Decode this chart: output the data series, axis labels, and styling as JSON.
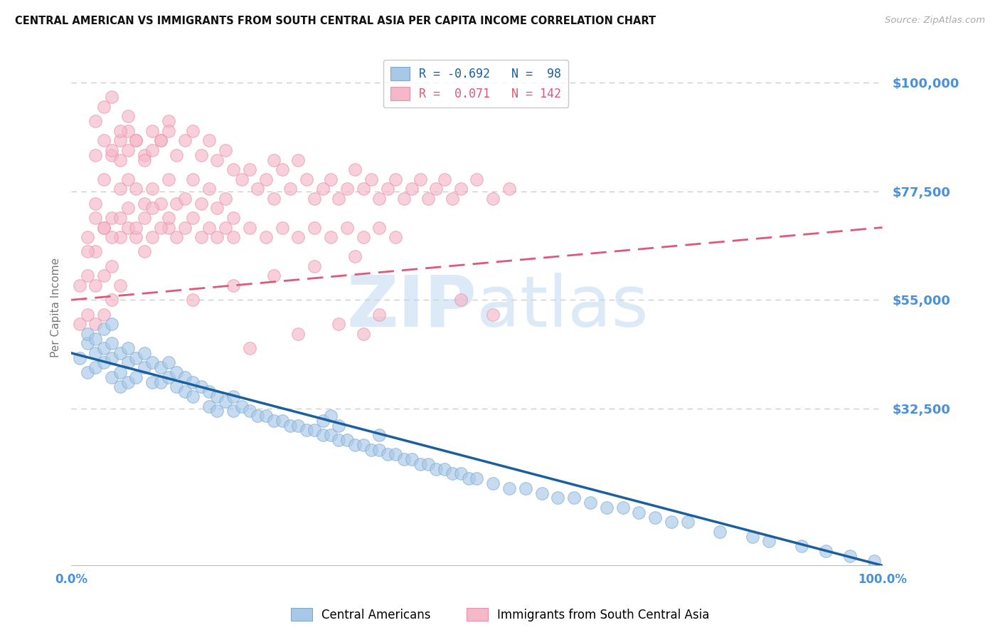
{
  "title": "CENTRAL AMERICAN VS IMMIGRANTS FROM SOUTH CENTRAL ASIA PER CAPITA INCOME CORRELATION CHART",
  "source": "Source: ZipAtlas.com",
  "ylabel": "Per Capita Income",
  "yticks": [
    32500,
    55000,
    77500,
    100000
  ],
  "ymin": 0,
  "ymax": 107000,
  "xmin": 0.0,
  "xmax": 1.0,
  "blue_R": -0.692,
  "blue_N": 98,
  "pink_R": 0.071,
  "pink_N": 142,
  "blue_color": "#a8c8e8",
  "pink_color": "#f5b8c8",
  "blue_edge_color": "#7aaace",
  "pink_edge_color": "#e890a8",
  "blue_line_color": "#1a5fa0",
  "pink_line_color": "#e05878",
  "series1_label": "Central Americans",
  "series2_label": "Immigrants from South Central Asia",
  "background_color": "#ffffff",
  "grid_color": "#c8c8c8",
  "title_color": "#111111",
  "axis_label_color": "#4a90d9",
  "watermark_color": "#c0d8f0",
  "blue_trend_x0": 0.0,
  "blue_trend_y0": 44000,
  "blue_trend_x1": 1.0,
  "blue_trend_y1": 0,
  "pink_trend_x0": 0.0,
  "pink_trend_y0": 55000,
  "pink_trend_x1": 1.0,
  "pink_trend_y1": 70000,
  "blue_x": [
    0.01,
    0.02,
    0.02,
    0.03,
    0.03,
    0.04,
    0.04,
    0.05,
    0.05,
    0.05,
    0.06,
    0.06,
    0.06,
    0.07,
    0.07,
    0.07,
    0.08,
    0.08,
    0.09,
    0.09,
    0.1,
    0.1,
    0.11,
    0.11,
    0.12,
    0.12,
    0.13,
    0.13,
    0.14,
    0.14,
    0.15,
    0.15,
    0.16,
    0.17,
    0.17,
    0.18,
    0.18,
    0.19,
    0.2,
    0.2,
    0.21,
    0.22,
    0.23,
    0.24,
    0.25,
    0.26,
    0.27,
    0.28,
    0.29,
    0.3,
    0.31,
    0.31,
    0.32,
    0.32,
    0.33,
    0.33,
    0.34,
    0.35,
    0.36,
    0.37,
    0.38,
    0.38,
    0.39,
    0.4,
    0.41,
    0.42,
    0.43,
    0.44,
    0.45,
    0.46,
    0.47,
    0.48,
    0.49,
    0.5,
    0.52,
    0.54,
    0.56,
    0.58,
    0.6,
    0.62,
    0.64,
    0.66,
    0.68,
    0.7,
    0.72,
    0.74,
    0.76,
    0.8,
    0.84,
    0.86,
    0.9,
    0.93,
    0.96,
    0.99,
    0.02,
    0.03,
    0.04,
    0.05
  ],
  "blue_y": [
    43000,
    46000,
    40000,
    44000,
    41000,
    45000,
    42000,
    46000,
    43000,
    39000,
    44000,
    40000,
    37000,
    45000,
    42000,
    38000,
    43000,
    39000,
    44000,
    41000,
    42000,
    38000,
    41000,
    38000,
    42000,
    39000,
    40000,
    37000,
    39000,
    36000,
    38000,
    35000,
    37000,
    36000,
    33000,
    35000,
    32000,
    34000,
    35000,
    32000,
    33000,
    32000,
    31000,
    31000,
    30000,
    30000,
    29000,
    29000,
    28000,
    28000,
    27000,
    30000,
    27000,
    31000,
    26000,
    29000,
    26000,
    25000,
    25000,
    24000,
    24000,
    27000,
    23000,
    23000,
    22000,
    22000,
    21000,
    21000,
    20000,
    20000,
    19000,
    19000,
    18000,
    18000,
    17000,
    16000,
    16000,
    15000,
    14000,
    14000,
    13000,
    12000,
    12000,
    11000,
    10000,
    9000,
    9000,
    7000,
    6000,
    5000,
    4000,
    3000,
    2000,
    1000,
    48000,
    47000,
    49000,
    50000
  ],
  "pink_x": [
    0.01,
    0.01,
    0.02,
    0.02,
    0.02,
    0.03,
    0.03,
    0.03,
    0.03,
    0.04,
    0.04,
    0.04,
    0.04,
    0.05,
    0.05,
    0.05,
    0.05,
    0.06,
    0.06,
    0.06,
    0.06,
    0.07,
    0.07,
    0.07,
    0.08,
    0.08,
    0.08,
    0.09,
    0.09,
    0.09,
    0.1,
    0.1,
    0.1,
    0.11,
    0.11,
    0.12,
    0.12,
    0.12,
    0.13,
    0.13,
    0.14,
    0.14,
    0.15,
    0.15,
    0.16,
    0.16,
    0.17,
    0.17,
    0.18,
    0.18,
    0.19,
    0.19,
    0.2,
    0.2,
    0.21,
    0.22,
    0.23,
    0.24,
    0.25,
    0.25,
    0.26,
    0.27,
    0.28,
    0.29,
    0.3,
    0.31,
    0.32,
    0.33,
    0.34,
    0.35,
    0.36,
    0.37,
    0.38,
    0.39,
    0.4,
    0.41,
    0.42,
    0.43,
    0.44,
    0.45,
    0.46,
    0.47,
    0.48,
    0.5,
    0.52,
    0.54,
    0.02,
    0.03,
    0.04,
    0.05,
    0.06,
    0.07,
    0.08,
    0.09,
    0.1,
    0.11,
    0.12,
    0.13,
    0.14,
    0.15,
    0.16,
    0.17,
    0.18,
    0.19,
    0.2,
    0.22,
    0.24,
    0.26,
    0.28,
    0.3,
    0.32,
    0.34,
    0.36,
    0.38,
    0.4,
    0.15,
    0.2,
    0.25,
    0.3,
    0.35,
    0.03,
    0.04,
    0.05,
    0.06,
    0.07,
    0.03,
    0.04,
    0.05,
    0.06,
    0.07,
    0.08,
    0.09,
    0.1,
    0.11,
    0.12,
    0.48,
    0.36,
    0.52,
    0.22,
    0.28,
    0.33,
    0.38
  ],
  "pink_y": [
    58000,
    50000,
    68000,
    60000,
    52000,
    75000,
    65000,
    58000,
    50000,
    80000,
    70000,
    60000,
    52000,
    85000,
    72000,
    62000,
    55000,
    88000,
    78000,
    68000,
    58000,
    90000,
    80000,
    70000,
    88000,
    78000,
    68000,
    85000,
    75000,
    65000,
    90000,
    78000,
    68000,
    88000,
    75000,
    92000,
    80000,
    70000,
    85000,
    75000,
    88000,
    76000,
    90000,
    80000,
    85000,
    75000,
    88000,
    78000,
    84000,
    74000,
    86000,
    76000,
    82000,
    72000,
    80000,
    82000,
    78000,
    80000,
    84000,
    76000,
    82000,
    78000,
    84000,
    80000,
    76000,
    78000,
    80000,
    76000,
    78000,
    82000,
    78000,
    80000,
    76000,
    78000,
    80000,
    76000,
    78000,
    80000,
    76000,
    78000,
    80000,
    76000,
    78000,
    80000,
    76000,
    78000,
    65000,
    72000,
    70000,
    68000,
    72000,
    74000,
    70000,
    72000,
    74000,
    70000,
    72000,
    68000,
    70000,
    72000,
    68000,
    70000,
    68000,
    70000,
    68000,
    70000,
    68000,
    70000,
    68000,
    70000,
    68000,
    70000,
    68000,
    70000,
    68000,
    55000,
    58000,
    60000,
    62000,
    64000,
    92000,
    95000,
    97000,
    90000,
    93000,
    85000,
    88000,
    86000,
    84000,
    86000,
    88000,
    84000,
    86000,
    88000,
    90000,
    55000,
    48000,
    52000,
    45000,
    48000,
    50000,
    52000
  ]
}
